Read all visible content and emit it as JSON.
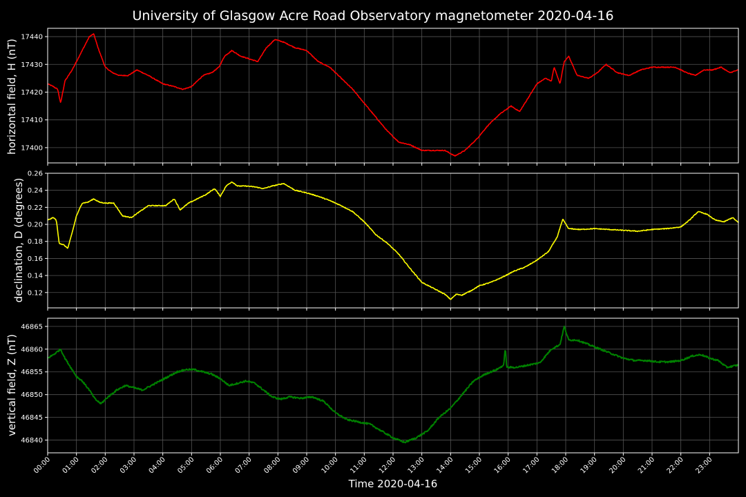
{
  "chart_data": {
    "type": "line",
    "title": "University of Glasgow Acre Road Observatory magnetometer 2020-04-16",
    "xlabel": "Time 2020-04-16",
    "xlim": [
      0,
      24
    ],
    "xticks": [
      "00:00",
      "01:00",
      "02:00",
      "03:00",
      "04:00",
      "05:00",
      "06:00",
      "07:00",
      "08:00",
      "09:00",
      "10:00",
      "11:00",
      "12:00",
      "13:00",
      "14:00",
      "15:00",
      "16:00",
      "17:00",
      "18:00",
      "19:00",
      "20:00",
      "21:00",
      "22:00",
      "23:00"
    ],
    "grid": true,
    "panels": [
      {
        "ylabel": "horizontal field, H (nT)",
        "color": "#ff0000",
        "ylim": [
          17394.5,
          17443
        ],
        "yticks": [
          17400,
          17410,
          17420,
          17430,
          17440
        ],
        "tick_decimals": 0,
        "x": [
          0,
          0.2,
          0.35,
          0.45,
          0.6,
          0.85,
          1.1,
          1.35,
          1.45,
          1.6,
          1.75,
          2.0,
          2.25,
          2.5,
          2.8,
          3.1,
          3.5,
          4.0,
          4.4,
          4.7,
          5.0,
          5.4,
          5.7,
          5.95,
          6.15,
          6.4,
          6.7,
          7.0,
          7.3,
          7.6,
          7.9,
          8.2,
          8.6,
          9.0,
          9.4,
          9.8,
          10.2,
          10.6,
          11.0,
          11.4,
          11.8,
          12.2,
          12.6,
          13.0,
          13.4,
          13.8,
          14.15,
          14.5,
          14.9,
          15.3,
          15.7,
          16.1,
          16.4,
          16.7,
          17.0,
          17.3,
          17.5,
          17.6,
          17.8,
          17.95,
          18.1,
          18.4,
          18.8,
          19.1,
          19.4,
          19.8,
          20.2,
          20.6,
          21.0,
          21.4,
          21.8,
          22.2,
          22.5,
          22.8,
          23.1,
          23.4,
          23.7,
          24.0
        ],
        "values": [
          17423,
          17422,
          17421,
          17416,
          17424,
          17428,
          17433,
          17438,
          17440,
          17441,
          17436,
          17429,
          17427,
          17426,
          17426,
          17428,
          17426,
          17423,
          17422,
          17421,
          17422,
          17426,
          17427,
          17429,
          17433,
          17435,
          17433,
          17432,
          17431,
          17436,
          17439,
          17438,
          17436,
          17435,
          17431,
          17429,
          17425,
          17421,
          17416,
          17411,
          17406,
          17402,
          17401,
          17399,
          17399,
          17399,
          17397,
          17399,
          17403,
          17408,
          17412,
          17415,
          17413,
          17418,
          17423,
          17425,
          17424,
          17429,
          17423,
          17431,
          17433,
          17426,
          17425,
          17427,
          17430,
          17427,
          17426,
          17428,
          17429,
          17429,
          17429,
          17427,
          17426,
          17428,
          17428,
          17429,
          17427,
          17428
        ]
      },
      {
        "ylabel": "declination, D (degrees)",
        "color": "#ffff00",
        "ylim": [
          0.102,
          0.26
        ],
        "yticks": [
          0.12,
          0.14,
          0.16,
          0.18,
          0.2,
          0.22,
          0.24,
          0.26
        ],
        "tick_decimals": 2,
        "x": [
          0,
          0.2,
          0.3,
          0.4,
          0.55,
          0.7,
          0.85,
          1.0,
          1.2,
          1.4,
          1.6,
          1.8,
          2.0,
          2.3,
          2.6,
          2.9,
          3.2,
          3.5,
          3.8,
          4.1,
          4.4,
          4.6,
          4.9,
          5.2,
          5.5,
          5.8,
          6.0,
          6.2,
          6.4,
          6.6,
          6.9,
          7.2,
          7.5,
          7.8,
          8.2,
          8.6,
          9.0,
          9.4,
          9.8,
          10.2,
          10.6,
          11.0,
          11.4,
          11.8,
          12.2,
          12.6,
          13.0,
          13.4,
          13.8,
          14.0,
          14.2,
          14.4,
          14.7,
          15.0,
          15.4,
          15.8,
          16.2,
          16.6,
          17.0,
          17.4,
          17.7,
          17.9,
          18.1,
          18.5,
          19.0,
          19.5,
          20.0,
          20.5,
          21.0,
          21.5,
          22.0,
          22.3,
          22.6,
          22.9,
          23.2,
          23.5,
          23.8,
          24.0
        ],
        "values": [
          0.205,
          0.208,
          0.205,
          0.178,
          0.176,
          0.172,
          0.19,
          0.21,
          0.225,
          0.226,
          0.23,
          0.226,
          0.225,
          0.225,
          0.21,
          0.208,
          0.215,
          0.222,
          0.222,
          0.222,
          0.23,
          0.217,
          0.225,
          0.23,
          0.235,
          0.242,
          0.233,
          0.245,
          0.25,
          0.245,
          0.245,
          0.244,
          0.242,
          0.245,
          0.248,
          0.24,
          0.237,
          0.233,
          0.228,
          0.222,
          0.215,
          0.203,
          0.188,
          0.178,
          0.165,
          0.148,
          0.132,
          0.125,
          0.118,
          0.112,
          0.118,
          0.117,
          0.122,
          0.128,
          0.132,
          0.138,
          0.145,
          0.15,
          0.158,
          0.168,
          0.185,
          0.206,
          0.195,
          0.194,
          0.195,
          0.194,
          0.193,
          0.192,
          0.194,
          0.195,
          0.197,
          0.205,
          0.215,
          0.212,
          0.205,
          0.203,
          0.208,
          0.202
        ]
      },
      {
        "ylabel": "vertical field, Z (nT)",
        "color": "#008000",
        "ylim": [
          46837.2,
          46866.8
        ],
        "yticks": [
          46840,
          46845,
          46850,
          46855,
          46860,
          46865
        ],
        "tick_decimals": 0,
        "x": [
          0,
          0.25,
          0.45,
          0.6,
          0.8,
          1.0,
          1.2,
          1.45,
          1.65,
          1.85,
          2.1,
          2.4,
          2.7,
          3.0,
          3.3,
          3.6,
          3.9,
          4.2,
          4.5,
          4.8,
          5.1,
          5.4,
          5.7,
          6.0,
          6.3,
          6.6,
          6.9,
          7.2,
          7.5,
          7.8,
          8.1,
          8.4,
          8.8,
          9.2,
          9.6,
          10.0,
          10.4,
          10.8,
          11.2,
          11.6,
          12.0,
          12.4,
          12.8,
          13.2,
          13.6,
          14.0,
          14.4,
          14.8,
          15.2,
          15.6,
          15.85,
          15.9,
          15.95,
          16.3,
          16.7,
          17.1,
          17.5,
          17.8,
          17.95,
          18.1,
          18.4,
          18.8,
          19.2,
          19.6,
          20.0,
          20.4,
          20.8,
          21.2,
          21.6,
          22.0,
          22.4,
          22.7,
          23.0,
          23.3,
          23.6,
          24.0
        ],
        "values": [
          46858,
          46859,
          46860,
          46858,
          46856,
          46854,
          46853,
          46851,
          46849,
          46848,
          46849.5,
          46851,
          46852,
          46851.5,
          46851,
          46852,
          46853,
          46854,
          46855,
          46855.5,
          46855.5,
          46855,
          46854.5,
          46853.5,
          46852,
          46852.5,
          46853,
          46852.5,
          46851,
          46849.5,
          46849,
          46849.5,
          46849.2,
          46849.5,
          46848.5,
          46846,
          46844.5,
          46844,
          46843.5,
          46842,
          46840.5,
          46839.5,
          46840.5,
          46842,
          46845,
          46847,
          46850,
          46853,
          46854.5,
          46855.5,
          46856.5,
          46860.5,
          46856,
          46856,
          46856.5,
          46857,
          46860,
          46861,
          46865,
          46862,
          46862,
          46861,
          46860,
          46859,
          46858,
          46857.5,
          46857.5,
          46857.2,
          46857.2,
          46857.5,
          46858.5,
          46858.8,
          46858,
          46857.5,
          46856,
          46856.5
        ]
      }
    ]
  }
}
